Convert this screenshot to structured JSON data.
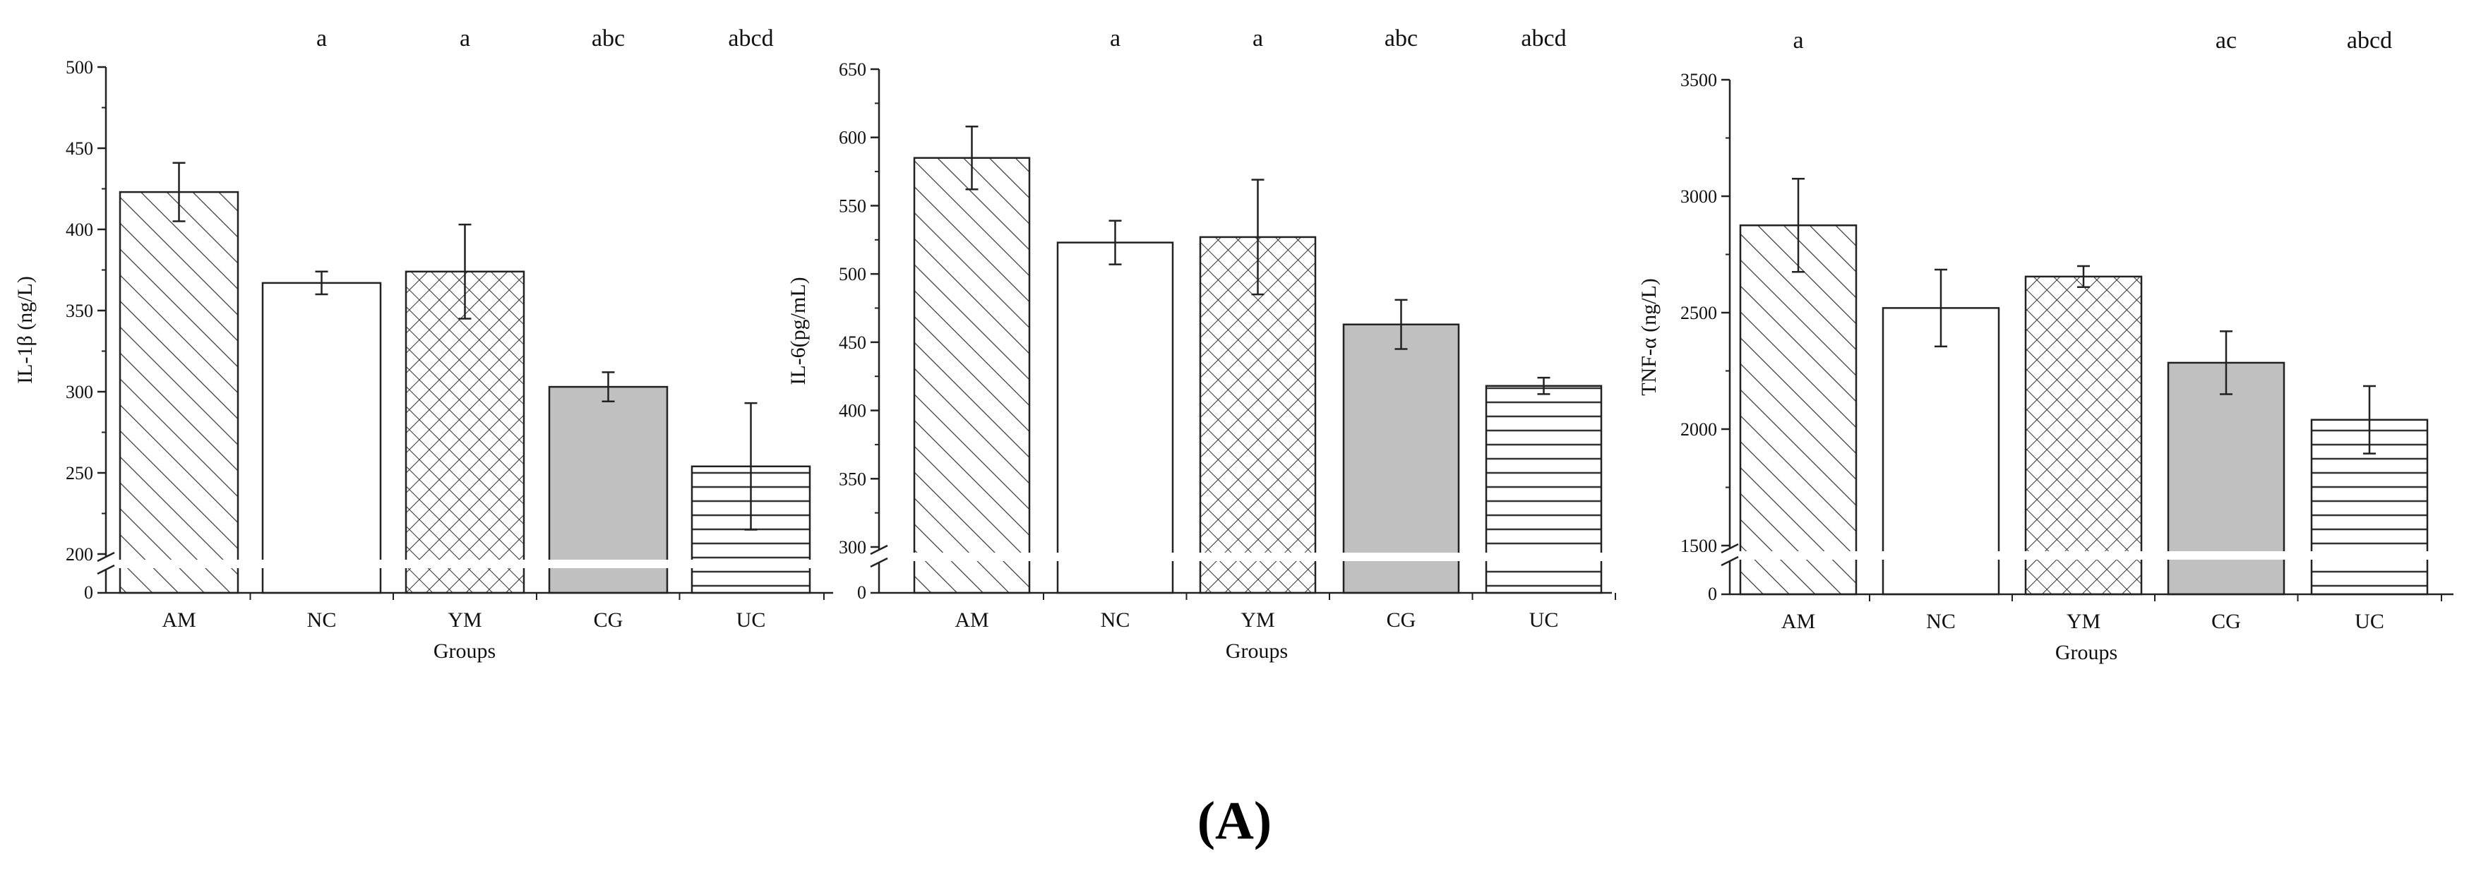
{
  "figure": {
    "panel_label": "(A)"
  },
  "colors": {
    "axis": "#222222",
    "bar_edge": "#222222",
    "gray_fill": "#c0c0c0",
    "background": "#ffffff"
  },
  "chart_data": [
    {
      "type": "bar",
      "ylabel": "IL-1β (ng/L)",
      "xlabel": "Groups",
      "categories": [
        "AM",
        "NC",
        "YM",
        "CG",
        "UC"
      ],
      "values": [
        423,
        367,
        374,
        303,
        254
      ],
      "errors": [
        18,
        7,
        29,
        9,
        39
      ],
      "patterns": [
        "diag",
        "none",
        "cross",
        "gray",
        "hlines"
      ],
      "significance": [
        "",
        "a",
        "a",
        "abc",
        "abcd"
      ],
      "ylim": [
        200,
        500
      ],
      "yticks": [
        200,
        250,
        300,
        350,
        400,
        450,
        500
      ],
      "axis_break": true,
      "zero_label": "0"
    },
    {
      "type": "bar",
      "ylabel": "IL-6(pg/mL)",
      "xlabel": "Groups",
      "categories": [
        "AM",
        "NC",
        "YM",
        "CG",
        "UC"
      ],
      "values": [
        585,
        523,
        527,
        463,
        418
      ],
      "errors": [
        23,
        16,
        42,
        18,
        6
      ],
      "patterns": [
        "diag",
        "none",
        "cross",
        "gray",
        "hlines"
      ],
      "significance": [
        "",
        "a",
        "a",
        "abc",
        "abcd"
      ],
      "ylim": [
        300,
        650
      ],
      "yticks": [
        300,
        350,
        400,
        450,
        500,
        550,
        600,
        650
      ],
      "axis_break": true,
      "zero_label": "0"
    },
    {
      "type": "bar",
      "ylabel": "TNF-α (ng/L)",
      "xlabel": "Groups",
      "categories": [
        "AM",
        "NC",
        "YM",
        "CG",
        "UC"
      ],
      "values": [
        2875,
        2520,
        2655,
        2285,
        2040
      ],
      "errors": [
        200,
        165,
        45,
        135,
        145
      ],
      "patterns": [
        "diag",
        "none",
        "cross",
        "gray",
        "hlines"
      ],
      "significance": [
        "a",
        "",
        "",
        "ac",
        "abcd"
      ],
      "ylim": [
        1500,
        3500
      ],
      "yticks": [
        1500,
        2000,
        2500,
        3000,
        3500
      ],
      "axis_break": true,
      "zero_label": "0"
    }
  ]
}
